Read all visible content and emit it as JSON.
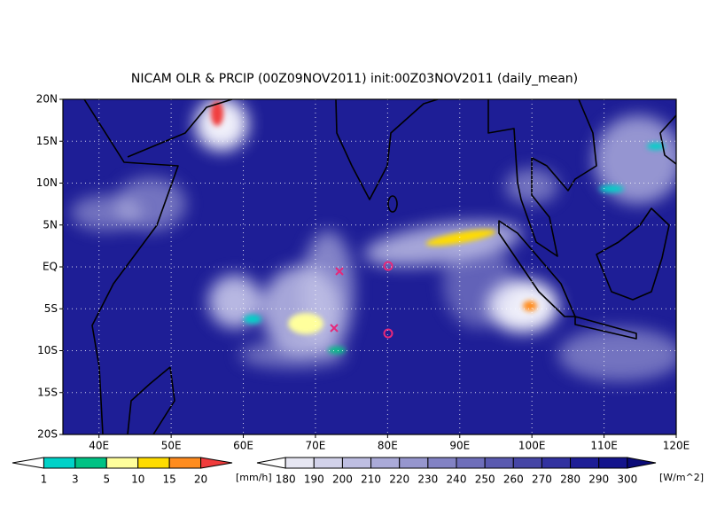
{
  "title": "NICAM OLR & PRCIP (00Z09NOV2011) init:00Z03NOV2011 (daily_mean)",
  "map": {
    "lon_range": [
      35,
      120
    ],
    "lat_range": [
      -20,
      20
    ],
    "lat_ticks": [
      {
        "value": 20,
        "label": "20N"
      },
      {
        "value": 15,
        "label": "15N"
      },
      {
        "value": 10,
        "label": "10N"
      },
      {
        "value": 5,
        "label": "5N"
      },
      {
        "value": 0,
        "label": "EQ"
      },
      {
        "value": -5,
        "label": "5S"
      },
      {
        "value": -10,
        "label": "10S"
      },
      {
        "value": -15,
        "label": "15S"
      },
      {
        "value": -20,
        "label": "20S"
      }
    ],
    "lon_ticks": [
      {
        "value": 40,
        "label": "40E"
      },
      {
        "value": 50,
        "label": "50E"
      },
      {
        "value": 60,
        "label": "60E"
      },
      {
        "value": 70,
        "label": "70E"
      },
      {
        "value": 80,
        "label": "80E"
      },
      {
        "value": 90,
        "label": "90E"
      },
      {
        "value": 100,
        "label": "100E"
      },
      {
        "value": 110,
        "label": "110E"
      },
      {
        "value": 120,
        "label": "120E"
      }
    ]
  },
  "precip_legend": {
    "labels": [
      "1",
      "3",
      "5",
      "10",
      "15",
      "20"
    ],
    "unit": "[mm/h]",
    "colors": [
      "#ffffff",
      "#00d2c8",
      "#00c284",
      "#ffff9c",
      "#ffdc00",
      "#ff8c1e",
      "#f03c3c"
    ]
  },
  "olr_legend": {
    "labels": [
      "180",
      "190",
      "200",
      "210",
      "220",
      "230",
      "240",
      "250",
      "260",
      "270",
      "280",
      "290",
      "300"
    ],
    "unit": "[W/m^2]",
    "colors": [
      "#ffffff",
      "#e6e6f2",
      "#d2d2ea",
      "#bebee2",
      "#aaaad8",
      "#9696ce",
      "#8282c4",
      "#6e6eba",
      "#5a5ab0",
      "#4646a6",
      "#3232a0",
      "#1e1e96",
      "#14148c",
      "#0a0a78"
    ]
  }
}
